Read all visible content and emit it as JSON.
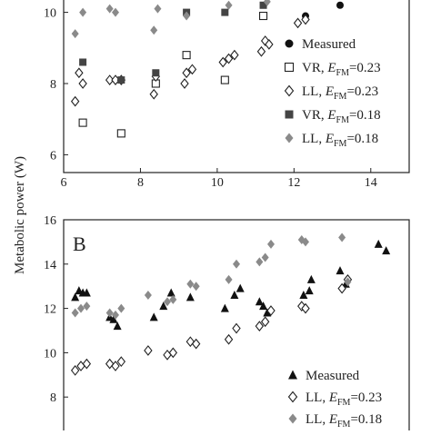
{
  "chart_data": [
    {
      "type": "scatter",
      "panel_label": "",
      "xlim": [
        6,
        15
      ],
      "ylim": [
        5.5,
        10.5
      ],
      "xticks": [
        "6",
        "8",
        "10",
        "12",
        "14"
      ],
      "yticks": [
        "6",
        "8",
        "10"
      ],
      "xticks_values": [
        6,
        8,
        10,
        12,
        14
      ],
      "yticks_values": [
        6,
        8,
        10
      ],
      "legend_position": "bottom-right",
      "series": [
        {
          "name": "Measured",
          "marker": "circle-filled",
          "color": "#111111",
          "x": [
            12.3,
            13.2
          ],
          "y": [
            9.9,
            10.2
          ]
        },
        {
          "name": "VR, E_FM=0.23",
          "legend_label": "VR, ",
          "legend_italic": "E",
          "legend_sub": "FM",
          "legend_suffix": "=0.23",
          "marker": "square-open",
          "color": "#222222",
          "x": [
            6.5,
            7.5,
            8.4,
            9.2,
            10.2,
            11.2
          ],
          "y": [
            6.9,
            6.6,
            8.0,
            8.8,
            8.1,
            9.9
          ]
        },
        {
          "name": "LL, E_FM=0.23",
          "legend_label": "LL, ",
          "legend_italic": "E",
          "legend_sub": "FM",
          "legend_suffix": "=0.23",
          "marker": "diamond-open",
          "color": "#222222",
          "x": [
            6.3,
            6.4,
            6.5,
            7.2,
            7.35,
            7.5,
            8.35,
            8.4,
            9.15,
            9.2,
            9.35,
            10.15,
            10.3,
            10.45,
            11.15,
            11.25,
            11.35,
            12.1,
            12.3
          ],
          "y": [
            7.5,
            8.3,
            8.0,
            8.1,
            8.1,
            8.1,
            7.7,
            8.2,
            8.0,
            8.3,
            8.4,
            8.6,
            8.7,
            8.8,
            8.9,
            9.2,
            9.1,
            9.7,
            9.8
          ]
        },
        {
          "name": "VR, E_FM=0.18",
          "legend_label": "VR, ",
          "legend_italic": "E",
          "legend_sub": "FM",
          "legend_suffix": "=0.18",
          "marker": "square-filled",
          "color": "#444444",
          "x": [
            6.5,
            7.5,
            8.4,
            9.2,
            10.2,
            11.2
          ],
          "y": [
            8.6,
            8.1,
            8.3,
            10.0,
            10.0,
            10.2
          ]
        },
        {
          "name": "LL, E_FM=0.18",
          "legend_label": "LL, ",
          "legend_italic": "E",
          "legend_sub": "FM",
          "legend_suffix": "=0.18",
          "marker": "diamond-filled",
          "color": "#8a8a8a",
          "x": [
            6.3,
            6.5,
            7.2,
            7.35,
            8.35,
            8.45,
            9.2,
            10.3,
            11.3
          ],
          "y": [
            9.4,
            10.0,
            10.1,
            10.0,
            9.5,
            10.1,
            9.9,
            10.2,
            10.3
          ]
        }
      ]
    },
    {
      "type": "scatter",
      "panel_label": "B",
      "xlim": [
        6,
        15
      ],
      "ylim": [
        6,
        16
      ],
      "xticks": [],
      "yticks": [
        "6",
        "8",
        "10",
        "12",
        "14",
        "16"
      ],
      "xticks_values": [],
      "yticks_values": [
        6,
        8,
        10,
        12,
        14,
        16
      ],
      "legend_position": "bottom-right",
      "series": [
        {
          "name": "Measured",
          "marker": "triangle-filled",
          "color": "#111111",
          "x": [
            6.3,
            6.4,
            6.5,
            6.6,
            7.2,
            7.3,
            7.4,
            8.35,
            8.6,
            8.8,
            9.3,
            10.2,
            10.45,
            10.6,
            11.1,
            11.2,
            11.3,
            12.25,
            12.4,
            12.45,
            13.2,
            13.35,
            14.2,
            14.4
          ],
          "y": [
            12.5,
            12.8,
            12.7,
            12.7,
            11.6,
            11.5,
            11.2,
            11.6,
            12.1,
            12.7,
            12.5,
            12.0,
            12.6,
            12.9,
            12.3,
            12.1,
            11.8,
            12.6,
            12.8,
            13.3,
            13.7,
            13.1,
            14.9,
            14.6
          ]
        },
        {
          "name": "LL, E_FM=0.23",
          "legend_label": "LL, ",
          "legend_italic": "E",
          "legend_sub": "FM",
          "legend_suffix": "=0.23",
          "marker": "diamond-open",
          "color": "#222222",
          "x": [
            6.3,
            6.45,
            6.6,
            7.2,
            7.35,
            7.5,
            8.2,
            8.7,
            8.85,
            9.3,
            9.45,
            10.3,
            10.5,
            11.1,
            11.25,
            11.4,
            12.2,
            12.3,
            13.25,
            13.4
          ],
          "y": [
            9.2,
            9.4,
            9.5,
            9.5,
            9.4,
            9.6,
            10.1,
            9.9,
            10.0,
            10.5,
            10.4,
            10.6,
            11.1,
            11.2,
            11.4,
            11.9,
            12.1,
            12.0,
            12.9,
            13.3
          ]
        },
        {
          "name": "LL, E_FM=0.18",
          "legend_label": "LL, ",
          "legend_italic": "E",
          "legend_sub": "FM",
          "legend_suffix": "=0.18",
          "marker": "diamond-filled",
          "color": "#8a8a8a",
          "x": [
            6.3,
            6.45,
            6.6,
            7.2,
            7.35,
            7.5,
            8.2,
            8.7,
            8.85,
            9.3,
            9.45,
            10.3,
            10.5,
            11.1,
            11.25,
            11.4,
            12.2,
            12.3,
            13.25,
            13.4
          ],
          "y": [
            11.8,
            12.0,
            12.1,
            11.8,
            11.7,
            12.0,
            12.6,
            12.3,
            12.4,
            13.1,
            13.0,
            13.3,
            14.0,
            14.1,
            14.3,
            14.9,
            15.1,
            15.0,
            15.2,
            13.2
          ]
        }
      ]
    }
  ],
  "shared_ylabel": "Metabolic power (W)"
}
